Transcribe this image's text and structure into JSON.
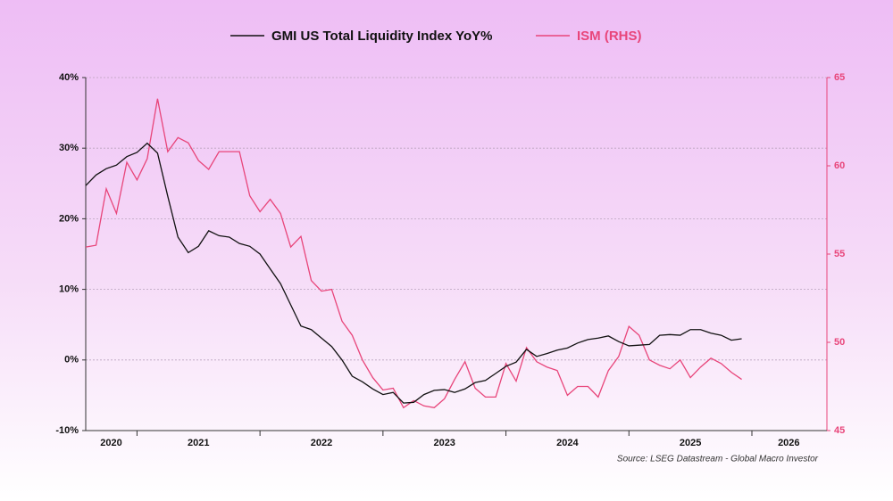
{
  "chart_data": {
    "type": "line",
    "x": [
      2020.583,
      2020.667,
      2020.75,
      2020.833,
      2020.917,
      2021,
      2021.083,
      2021.167,
      2021.25,
      2021.333,
      2021.417,
      2021.5,
      2021.583,
      2021.667,
      2021.75,
      2021.833,
      2021.917,
      2022,
      2022.083,
      2022.167,
      2022.25,
      2022.333,
      2022.417,
      2022.5,
      2022.583,
      2022.667,
      2022.75,
      2022.833,
      2022.917,
      2023,
      2023.083,
      2023.167,
      2023.25,
      2023.333,
      2023.417,
      2023.5,
      2023.583,
      2023.667,
      2023.75,
      2023.833,
      2023.917,
      2024,
      2024.083,
      2024.167,
      2024.25,
      2024.333,
      2024.417,
      2024.5,
      2024.583,
      2024.667,
      2024.75,
      2024.833,
      2024.917,
      2025,
      2025.083,
      2025.167,
      2025.25,
      2025.333,
      2025.417,
      2025.5,
      2025.583,
      2025.667,
      2025.75,
      2025.833,
      2025.917
    ],
    "series": [
      {
        "name": "GMI US Total Liquidity Index YoY%",
        "color": "#111111",
        "values": [
          24.7,
          26.2,
          27.1,
          27.6,
          28.8,
          29.4,
          30.7,
          29.3,
          23.2,
          17.4,
          15.2,
          16.1,
          18.3,
          17.6,
          17.4,
          16.5,
          16.1,
          15.0,
          12.9,
          10.8,
          7.8,
          4.8,
          4.3,
          3.1,
          1.9,
          0.0,
          -2.3,
          -3.1,
          -4.1,
          -4.9,
          -4.6,
          -6.1,
          -6.0,
          -4.9,
          -4.3,
          -4.2,
          -4.6,
          -4.1,
          -3.2,
          -2.9,
          -1.9,
          -0.9,
          -0.3,
          1.5,
          0.5,
          0.9,
          1.4,
          1.7,
          2.4,
          2.9,
          3.1,
          3.4,
          2.6,
          2.0,
          2.1,
          2.2,
          3.5,
          3.6,
          3.5,
          4.3,
          4.3,
          3.8,
          3.5,
          2.8,
          3.0
        ]
      },
      {
        "name": "ISM (RHS)",
        "color": "#e8457a",
        "axis": "y2",
        "values": [
          55.4,
          55.5,
          58.7,
          57.3,
          60.2,
          59.2,
          60.4,
          63.8,
          60.8,
          61.6,
          61.3,
          60.3,
          59.8,
          60.8,
          60.8,
          60.8,
          58.3,
          57.4,
          58.1,
          57.3,
          55.4,
          56.0,
          53.5,
          52.9,
          53.0,
          51.2,
          50.4,
          49.0,
          48.0,
          47.3,
          47.4,
          46.3,
          46.7,
          46.4,
          46.3,
          46.8,
          47.9,
          48.9,
          47.4,
          46.9,
          46.9,
          48.8,
          47.8,
          49.7,
          48.9,
          48.6,
          48.4,
          47.0,
          47.5,
          47.5,
          46.9,
          48.4,
          49.2,
          50.9,
          50.4,
          49.0,
          48.7,
          48.5,
          49.0,
          48.0,
          48.6,
          49.1,
          48.8,
          48.3,
          47.9
        ]
      }
    ],
    "xlim": [
      2020.583,
      2026.61
    ],
    "xticks": [
      2021,
      2022,
      2023,
      2024,
      2025,
      2026
    ],
    "x_labels": [
      {
        "value": 2020.79,
        "label": "2020"
      },
      {
        "value": 2021.5,
        "label": "2021"
      },
      {
        "value": 2022.5,
        "label": "2022"
      },
      {
        "value": 2023.5,
        "label": "2023"
      },
      {
        "value": 2024.5,
        "label": "2024"
      },
      {
        "value": 2025.5,
        "label": "2025"
      },
      {
        "value": 2026.3,
        "label": "2026"
      }
    ],
    "ylim": [
      -10,
      40
    ],
    "yticks": [
      {
        "value": -10,
        "label": "-10%"
      },
      {
        "value": 0,
        "label": "0%"
      },
      {
        "value": 10,
        "label": "10%"
      },
      {
        "value": 20,
        "label": "20%"
      },
      {
        "value": 30,
        "label": "30%"
      },
      {
        "value": 40,
        "label": "40%"
      }
    ],
    "y2lim": [
      45,
      65
    ],
    "y2ticks": [
      45,
      50,
      55,
      60,
      65
    ],
    "grid": true,
    "legend": "top",
    "source": "Source: LSEG Datastream - Global Macro Investor"
  }
}
